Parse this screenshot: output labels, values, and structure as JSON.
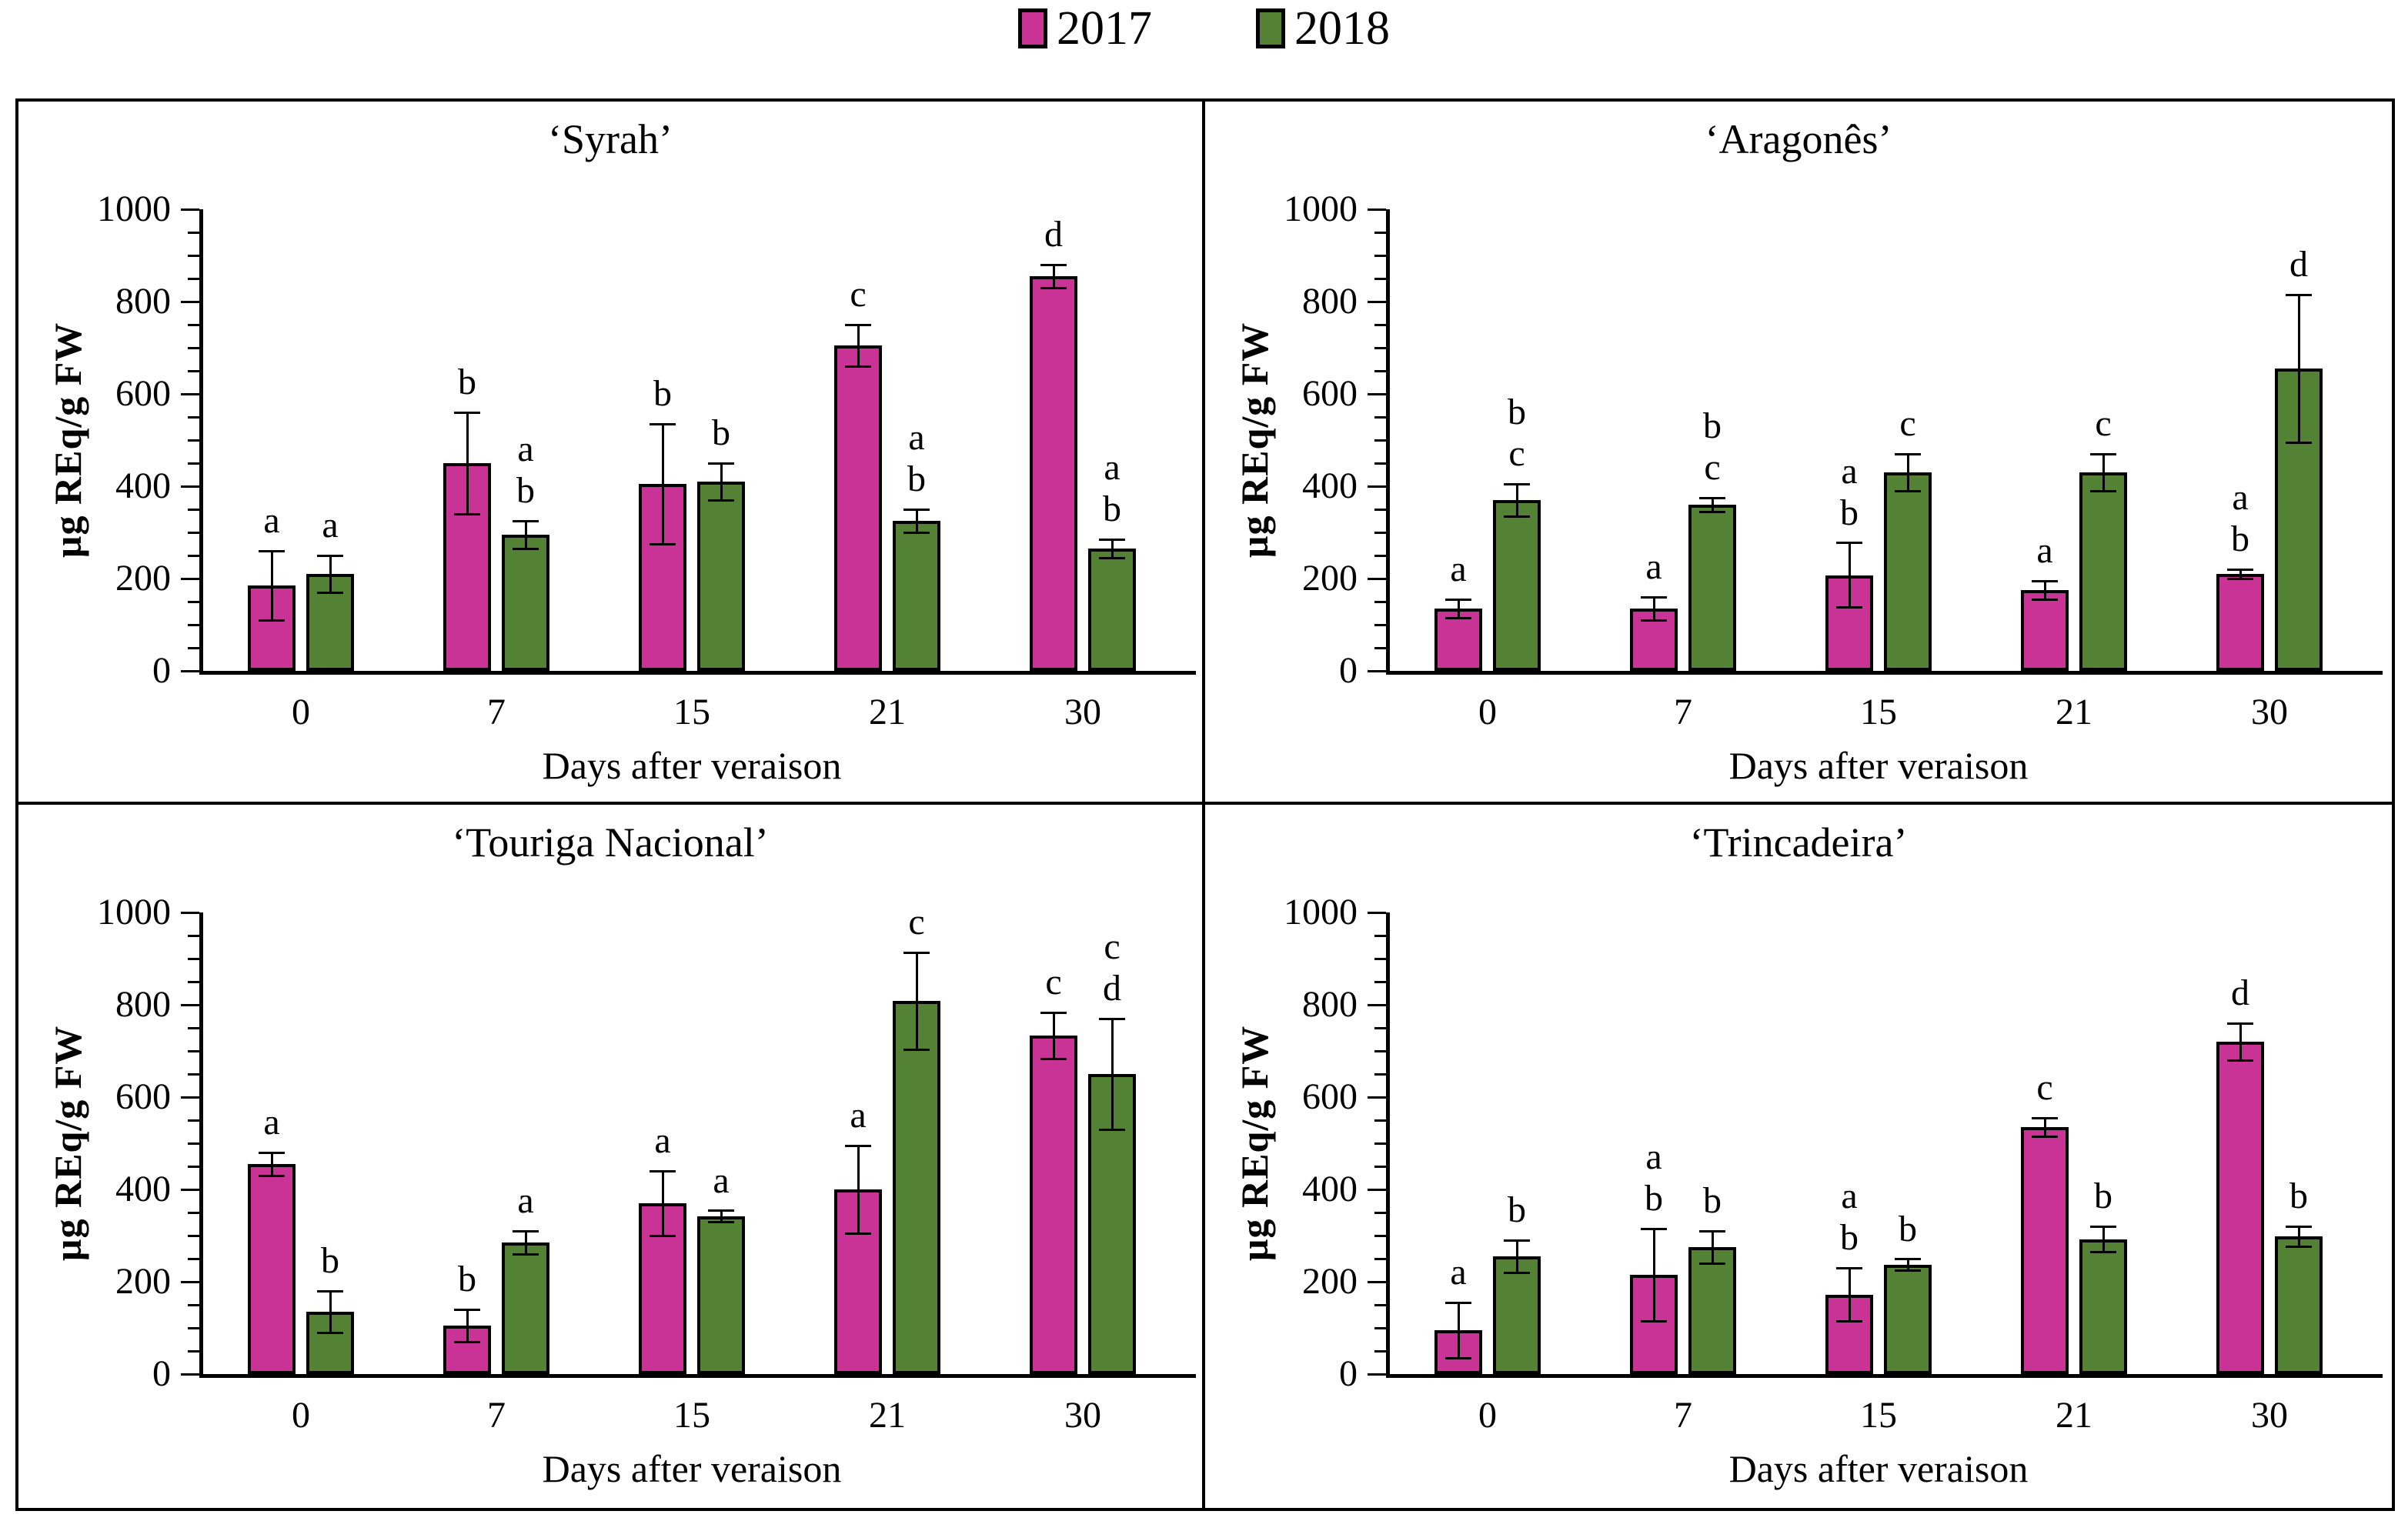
{
  "legend": {
    "items": [
      {
        "label": "2017",
        "color": "#C93396"
      },
      {
        "label": "2018",
        "color": "#548235"
      }
    ]
  },
  "chart_data": {
    "type": "bar",
    "grouped": true,
    "categories": [
      "0",
      "7",
      "15",
      "21",
      "30"
    ],
    "x_label": "Days after veraison",
    "y_label": "µg REq/g FW",
    "y_ticks": [
      0,
      200,
      400,
      600,
      800,
      1000
    ],
    "y_minor_step": 50,
    "ylim": [
      0,
      1000
    ],
    "error_bars": "plus-minus symmetric, black caps",
    "series_colors": {
      "2017": "#C93396",
      "2018": "#548235"
    },
    "panels": [
      {
        "title": "‘Syrah’",
        "series": [
          {
            "name": "2017",
            "values": [
              185,
              450,
              405,
              705,
              855
            ],
            "errors": [
              75,
              110,
              130,
              45,
              25
            ],
            "letters": [
              [
                "a"
              ],
              [
                "b"
              ],
              [
                "b"
              ],
              [
                "c"
              ],
              [
                "d"
              ]
            ]
          },
          {
            "name": "2018",
            "values": [
              210,
              295,
              410,
              325,
              265
            ],
            "errors": [
              40,
              30,
              40,
              25,
              20
            ],
            "letters": [
              [
                "a"
              ],
              [
                "a",
                "b"
              ],
              [
                "b"
              ],
              [
                "a",
                "b"
              ],
              [
                "a",
                "b"
              ]
            ]
          }
        ]
      },
      {
        "title": "‘Aragonês’",
        "series": [
          {
            "name": "2017",
            "values": [
              135,
              135,
              207,
              175,
              210
            ],
            "errors": [
              20,
              25,
              70,
              20,
              10
            ],
            "letters": [
              [
                "a"
              ],
              [
                "a"
              ],
              [
                "a",
                "b"
              ],
              [
                "a"
              ],
              [
                "a",
                "b"
              ]
            ]
          },
          {
            "name": "2018",
            "values": [
              370,
              360,
              430,
              430,
              655
            ],
            "errors": [
              35,
              15,
              40,
              40,
              160
            ],
            "letters": [
              [
                "b",
                "c"
              ],
              [
                "b",
                "c"
              ],
              [
                "c"
              ],
              [
                "c"
              ],
              [
                "d"
              ]
            ]
          }
        ]
      },
      {
        "title": "‘Touriga Nacional’",
        "series": [
          {
            "name": "2017",
            "values": [
              455,
              105,
              370,
              400,
              733
            ],
            "errors": [
              25,
              35,
              70,
              95,
              50
            ],
            "letters": [
              [
                "a"
              ],
              [
                "b"
              ],
              [
                "a"
              ],
              [
                "a"
              ],
              [
                "c"
              ]
            ]
          },
          {
            "name": "2018",
            "values": [
              135,
              285,
              342,
              808,
              650
            ],
            "errors": [
              45,
              25,
              12,
              105,
              120
            ],
            "letters": [
              [
                "b"
              ],
              [
                "a"
              ],
              [
                "a"
              ],
              [
                "c"
              ],
              [
                "c",
                "d"
              ]
            ]
          }
        ]
      },
      {
        "title": "‘Trincadeira’",
        "series": [
          {
            "name": "2017",
            "values": [
              95,
              215,
              172,
              535,
              720
            ],
            "errors": [
              60,
              100,
              58,
              20,
              40
            ],
            "letters": [
              [
                "a"
              ],
              [
                "a",
                "b"
              ],
              [
                "a",
                "b"
              ],
              [
                "c"
              ],
              [
                "d"
              ]
            ]
          },
          {
            "name": "2018",
            "values": [
              255,
              275,
              237,
              292,
              298
            ],
            "errors": [
              35,
              35,
              12,
              28,
              22
            ],
            "letters": [
              [
                "b"
              ],
              [
                "b"
              ],
              [
                "b"
              ],
              [
                "b"
              ],
              [
                "b"
              ]
            ]
          }
        ]
      }
    ]
  }
}
